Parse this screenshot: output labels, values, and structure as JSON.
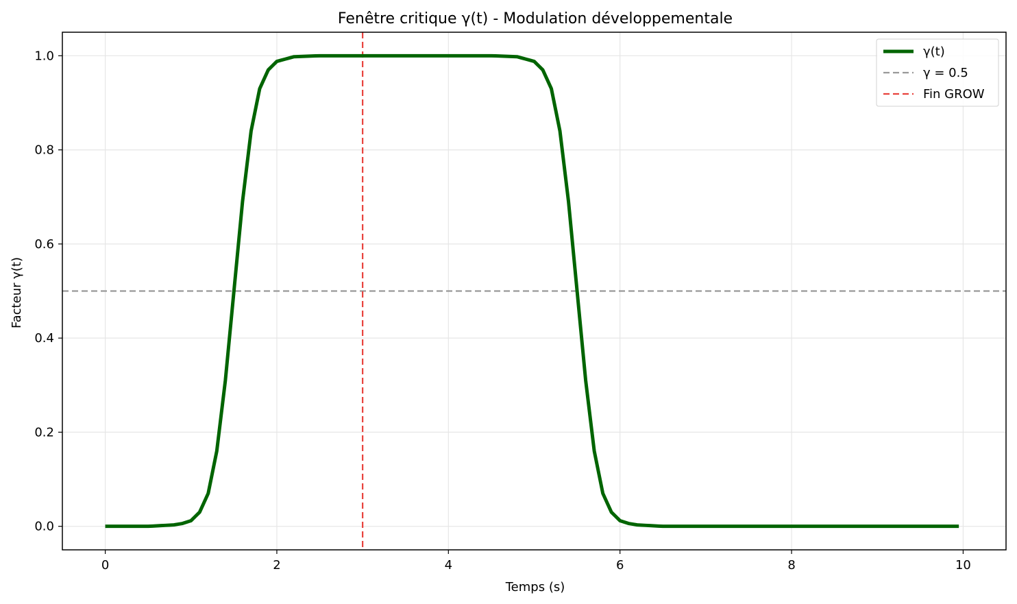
{
  "chart_data": {
    "type": "line",
    "title": "Fenêtre critique γ(t) - Modulation développementale",
    "xlabel": "Temps (s)",
    "ylabel": "Facteur γ(t)",
    "xlim": [
      -0.5,
      10.5
    ],
    "ylim": [
      -0.05,
      1.05
    ],
    "xticks": [
      0,
      2,
      4,
      6,
      8,
      10
    ],
    "xtick_labels": [
      "0",
      "2",
      "4",
      "6",
      "8",
      "10"
    ],
    "yticks": [
      0.0,
      0.2,
      0.4,
      0.6,
      0.8,
      1.0
    ],
    "ytick_labels": [
      "0.0",
      "0.2",
      "0.4",
      "0.6",
      "0.8",
      "1.0"
    ],
    "grid": true,
    "legend_position": "top-right",
    "series": [
      {
        "name": "γ(t)",
        "color": "#006400",
        "style": "solid",
        "x_start": 0,
        "x_end": 9.95,
        "x_step": 0.05,
        "points": [
          [
            0,
            0.0
          ],
          [
            0.5,
            0.0
          ],
          [
            0.8,
            0.003
          ],
          [
            0.9,
            0.006
          ],
          [
            1.0,
            0.012
          ],
          [
            1.1,
            0.03
          ],
          [
            1.2,
            0.07
          ],
          [
            1.3,
            0.16
          ],
          [
            1.4,
            0.31
          ],
          [
            1.5,
            0.5
          ],
          [
            1.6,
            0.69
          ],
          [
            1.7,
            0.84
          ],
          [
            1.8,
            0.93
          ],
          [
            1.9,
            0.97
          ],
          [
            2.0,
            0.988
          ],
          [
            2.2,
            0.998
          ],
          [
            2.5,
            1.0
          ],
          [
            4.5,
            1.0
          ],
          [
            4.8,
            0.998
          ],
          [
            5.0,
            0.988
          ],
          [
            5.1,
            0.97
          ],
          [
            5.2,
            0.93
          ],
          [
            5.3,
            0.84
          ],
          [
            5.4,
            0.69
          ],
          [
            5.5,
            0.5
          ],
          [
            5.6,
            0.31
          ],
          [
            5.7,
            0.16
          ],
          [
            5.8,
            0.07
          ],
          [
            5.9,
            0.03
          ],
          [
            6.0,
            0.012
          ],
          [
            6.1,
            0.006
          ],
          [
            6.2,
            0.003
          ],
          [
            6.5,
            0.0
          ],
          [
            9.95,
            0.0
          ]
        ]
      },
      {
        "name": "γ = 0.5",
        "color": "#999999",
        "style": "dashed",
        "orientation": "horizontal",
        "value": 0.5
      },
      {
        "name": "Fin GROW",
        "color": "#e8413c",
        "style": "dashed",
        "orientation": "vertical",
        "value": 3
      }
    ]
  }
}
